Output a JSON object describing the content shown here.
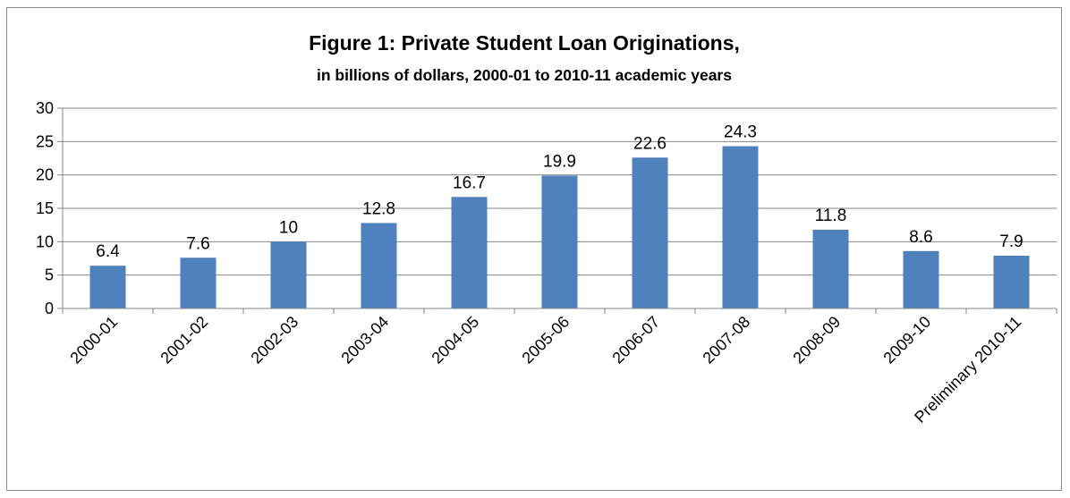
{
  "chart_data": {
    "type": "bar",
    "title": "Figure 1: Private Student Loan Originations,",
    "subtitle": "in billions of dollars, 2000-01 to 2010-11 academic years",
    "xlabel": "",
    "ylabel": "",
    "categories": [
      "2000-01",
      "2001-02",
      "2002-03",
      "2003-04",
      "2004-05",
      "2005-06",
      "2006-07",
      "2007-08",
      "2008-09",
      "2009-10",
      "Preliminary 2010-11"
    ],
    "values": [
      6.4,
      7.6,
      10,
      12.8,
      16.7,
      19.9,
      22.6,
      24.3,
      11.8,
      8.6,
      7.9
    ],
    "data_labels": [
      "6.4",
      "7.6",
      "10",
      "12.8",
      "16.7",
      "19.9",
      "22.6",
      "24.3",
      "11.8",
      "8.6",
      "7.9"
    ],
    "ylim": [
      0,
      30
    ],
    "yticks": [
      0,
      5,
      10,
      15,
      20,
      25,
      30
    ],
    "grid": true,
    "legend": "none",
    "bar_color": "#4f81bd",
    "grid_color": "#868686"
  }
}
